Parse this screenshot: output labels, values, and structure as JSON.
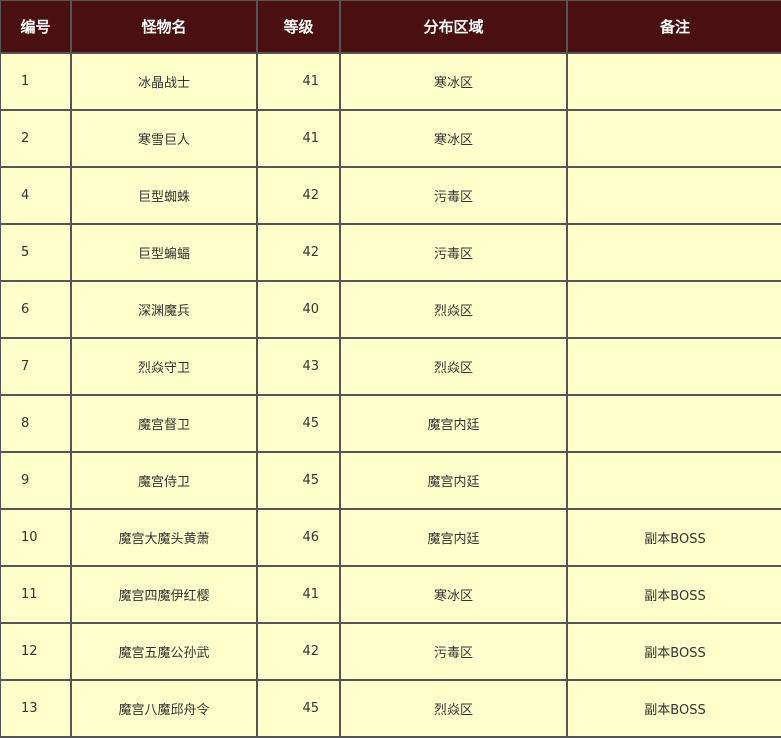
{
  "headers": [
    "编号",
    "怪物名",
    "等级",
    "分布区域",
    "备注"
  ],
  "rows": [
    {
      "id": "1",
      "name": "冰晶战士",
      "level": "41",
      "area": "寒冰区",
      "note": ""
    },
    {
      "id": "2",
      "name": "寒雪巨人",
      "level": "41",
      "area": "寒冰区",
      "note": ""
    },
    {
      "id": "4",
      "name": "巨型蜘蛛",
      "level": "42",
      "area": "污毒区",
      "note": ""
    },
    {
      "id": "5",
      "name": "巨型蝙蝠",
      "level": "42",
      "area": "污毒区",
      "note": ""
    },
    {
      "id": "6",
      "name": "深渊魔兵",
      "level": "40",
      "area": "烈焱区",
      "note": ""
    },
    {
      "id": "7",
      "name": "烈焱守卫",
      "level": "43",
      "area": "烈焱区",
      "note": ""
    },
    {
      "id": "8",
      "name": "魔宫督卫",
      "level": "45",
      "area": "魔宫内廷",
      "note": ""
    },
    {
      "id": "9",
      "name": "魔宫侍卫",
      "level": "45",
      "area": "魔宫内廷",
      "note": ""
    },
    {
      "id": "10",
      "name": "魔宫大魔头黄萧",
      "level": "46",
      "area": "魔宫内廷",
      "note": "副本BOSS"
    },
    {
      "id": "11",
      "name": "魔宫四魔伊红樱",
      "level": "41",
      "area": "寒冰区",
      "note": "副本BOSS"
    },
    {
      "id": "12",
      "name": "魔宫五魔公孙武",
      "level": "42",
      "area": "污毒区",
      "note": "副本BOSS"
    },
    {
      "id": "13",
      "name": "魔宫八魔邱舟令",
      "level": "45",
      "area": "烈焱区",
      "note": "副本BOSS"
    }
  ],
  "colors": {
    "header_bg": "#4a0f10",
    "cell_bg": "#ffffcc",
    "border": "#555555"
  }
}
